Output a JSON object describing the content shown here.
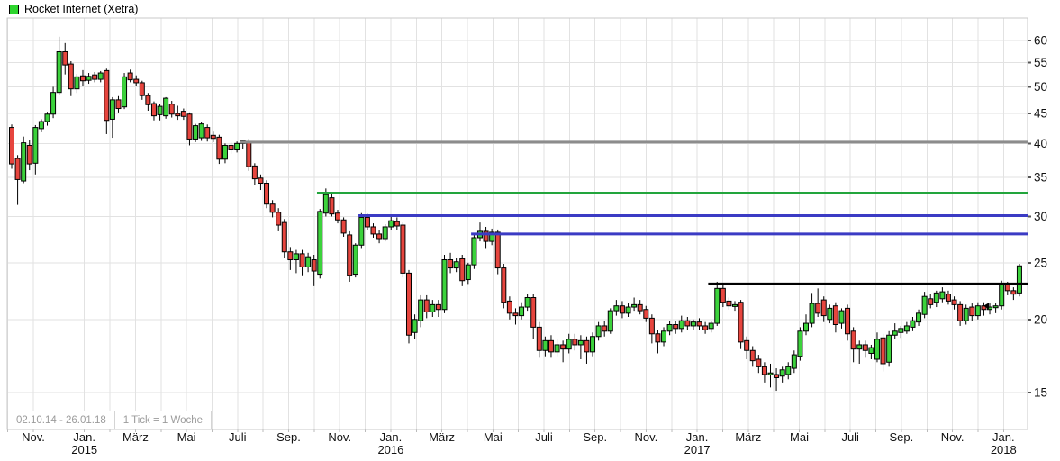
{
  "header": {
    "legend_label": "Rocket Internet (Xetra)",
    "legend_color": "#2ED52E"
  },
  "footer": {
    "date_range": "02.10.14 - 26.01.18",
    "tick_info": "1 Tick = 1 Woche"
  },
  "colors": {
    "background": "#FFFFFF",
    "grid": "#E2E2E2",
    "plot_border": "#C9C9C9",
    "up": "#3CD23C",
    "down": "#E6453E",
    "candle_outline": "#000000",
    "axis_text": "#111111",
    "tick_mark": "#555555",
    "footer_text": "#9B9B9B"
  },
  "chart_data": {
    "type": "candlestick",
    "title": "Rocket Internet (Xetra)",
    "period": "02.10.14 - 26.01.18",
    "interval": "1 Tick = 1 Woche",
    "scale": "log",
    "ylim": [
      13,
      66
    ],
    "yticks": [
      15,
      20,
      25,
      30,
      35,
      40,
      45,
      50,
      55,
      60
    ],
    "x_labels": [
      {
        "label": "Nov."
      },
      {
        "label": "Jan.",
        "year": "2015"
      },
      {
        "label": "März"
      },
      {
        "label": "Mai"
      },
      {
        "label": "Juli"
      },
      {
        "label": "Sep."
      },
      {
        "label": "Nov."
      },
      {
        "label": "Jan.",
        "year": "2016"
      },
      {
        "label": "März"
      },
      {
        "label": "Mai"
      },
      {
        "label": "Juli"
      },
      {
        "label": "Sep."
      },
      {
        "label": "Nov."
      },
      {
        "label": "Jan.",
        "year": "2017"
      },
      {
        "label": "März"
      },
      {
        "label": "Mai"
      },
      {
        "label": "Juli"
      },
      {
        "label": "Sep."
      },
      {
        "label": "Nov."
      },
      {
        "label": "Jan.",
        "year": "2018"
      }
    ],
    "levels": [
      {
        "name": "resistance-gray",
        "price": 40.2,
        "color": "#8C8C8C",
        "from_week": 40
      },
      {
        "name": "resistance-green",
        "price": 32.9,
        "color": "#22A53C",
        "from_week": 53
      },
      {
        "name": "resistance-blue-upper",
        "price": 30.1,
        "color": "#3B3BC4",
        "from_week": 60
      },
      {
        "name": "resistance-blue-lower",
        "price": 28.0,
        "color": "#3B3BC4",
        "from_week": 79
      },
      {
        "name": "resistance-black",
        "price": 23.0,
        "color": "#000000",
        "from_week": 119
      }
    ],
    "marker": {
      "week": 166,
      "price": 21.1,
      "shape": "left-arrow",
      "color": "#000000"
    },
    "candles": [
      [
        42.6,
        43.1,
        36.2,
        36.9
      ],
      [
        37.7,
        38.2,
        31.4,
        34.7
      ],
      [
        34.5,
        41.1,
        34.2,
        40.1
      ],
      [
        39.7,
        40.6,
        36.0,
        36.9
      ],
      [
        37.0,
        43.0,
        35.4,
        42.6
      ],
      [
        42.4,
        44.0,
        41.8,
        43.6
      ],
      [
        43.6,
        45.3,
        42.9,
        44.9
      ],
      [
        44.9,
        50.0,
        44.2,
        48.9
      ],
      [
        48.9,
        60.9,
        48.5,
        57.4
      ],
      [
        57.4,
        59.4,
        52.5,
        54.5
      ],
      [
        54.7,
        55.3,
        48.2,
        49.6
      ],
      [
        49.6,
        52.6,
        48.8,
        52.0
      ],
      [
        52.2,
        53.4,
        50.1,
        51.2
      ],
      [
        51.3,
        52.8,
        50.6,
        52.1
      ],
      [
        52.4,
        53.0,
        50.9,
        51.5
      ],
      [
        51.5,
        53.2,
        50.9,
        52.8
      ],
      [
        53.3,
        53.7,
        41.5,
        43.8
      ],
      [
        44.0,
        48.0,
        40.9,
        47.5
      ],
      [
        47.5,
        48.2,
        45.2,
        45.9
      ],
      [
        46.2,
        52.8,
        45.8,
        52.0
      ],
      [
        52.8,
        53.5,
        50.9,
        51.4
      ],
      [
        51.5,
        52.3,
        50.2,
        50.8
      ],
      [
        50.8,
        51.2,
        47.5,
        48.3
      ],
      [
        48.3,
        48.8,
        45.5,
        46.6
      ],
      [
        46.8,
        47.2,
        43.8,
        44.6
      ],
      [
        44.8,
        46.8,
        43.8,
        46.3
      ],
      [
        44.6,
        48.0,
        44.1,
        47.8
      ],
      [
        46.7,
        47.3,
        44.3,
        44.9
      ],
      [
        45.0,
        46.4,
        43.9,
        44.6
      ],
      [
        45.4,
        45.9,
        43.9,
        44.5
      ],
      [
        44.9,
        45.2,
        39.7,
        40.7
      ],
      [
        40.7,
        43.2,
        40.2,
        42.9
      ],
      [
        40.9,
        43.6,
        40.4,
        43.2
      ],
      [
        42.6,
        43.1,
        40.3,
        40.9
      ],
      [
        41.3,
        41.9,
        40.2,
        40.8
      ],
      [
        41.0,
        41.4,
        36.9,
        37.6
      ],
      [
        37.6,
        40.0,
        37.0,
        39.7
      ],
      [
        39.7,
        40.2,
        38.4,
        39.0
      ],
      [
        39.0,
        40.3,
        38.6,
        40.0
      ],
      [
        40.0,
        40.6,
        39.2,
        40.4
      ],
      [
        40.3,
        40.7,
        35.9,
        36.5
      ],
      [
        36.6,
        37.0,
        34.0,
        34.8
      ],
      [
        34.9,
        35.4,
        33.3,
        34.2
      ],
      [
        34.2,
        34.6,
        31.0,
        31.5
      ],
      [
        31.5,
        32.0,
        29.9,
        30.5
      ],
      [
        30.5,
        31.0,
        28.3,
        29.0
      ],
      [
        29.3,
        29.7,
        25.5,
        26.1
      ],
      [
        26.1,
        26.6,
        24.3,
        25.3
      ],
      [
        25.3,
        26.3,
        24.0,
        25.9
      ],
      [
        25.9,
        26.3,
        23.8,
        24.6
      ],
      [
        24.6,
        26.0,
        24.1,
        25.6
      ],
      [
        25.3,
        25.8,
        22.8,
        24.2
      ],
      [
        23.9,
        30.9,
        23.5,
        30.6
      ],
      [
        30.4,
        33.5,
        30.0,
        32.7
      ],
      [
        32.3,
        33.0,
        30.0,
        30.3
      ],
      [
        30.4,
        30.8,
        29.2,
        29.6
      ],
      [
        29.6,
        29.9,
        27.7,
        28.1
      ],
      [
        27.9,
        28.3,
        23.2,
        23.8
      ],
      [
        23.9,
        27.0,
        23.6,
        26.8
      ],
      [
        26.8,
        30.4,
        26.5,
        29.9
      ],
      [
        29.9,
        30.3,
        28.4,
        28.8
      ],
      [
        28.8,
        29.2,
        27.6,
        28.0
      ],
      [
        28.0,
        28.4,
        27.0,
        27.5
      ],
      [
        27.5,
        29.1,
        27.2,
        28.8
      ],
      [
        28.8,
        30.0,
        28.4,
        29.5
      ],
      [
        29.4,
        29.9,
        28.4,
        28.9
      ],
      [
        29.0,
        29.3,
        23.6,
        24.0
      ],
      [
        24.0,
        24.3,
        18.2,
        18.8
      ],
      [
        19.0,
        20.4,
        18.5,
        20.0
      ],
      [
        19.9,
        22.0,
        19.4,
        21.6
      ],
      [
        21.6,
        22.0,
        20.1,
        20.6
      ],
      [
        20.6,
        21.6,
        20.2,
        21.2
      ],
      [
        21.2,
        21.6,
        20.2,
        20.8
      ],
      [
        20.8,
        25.8,
        20.5,
        25.3
      ],
      [
        25.3,
        26.0,
        24.0,
        24.5
      ],
      [
        24.5,
        25.5,
        24.1,
        25.1
      ],
      [
        25.4,
        25.8,
        22.8,
        23.3
      ],
      [
        23.4,
        25.0,
        23.0,
        24.8
      ],
      [
        24.8,
        28.1,
        24.4,
        27.6
      ],
      [
        27.6,
        29.3,
        27.2,
        28.3
      ],
      [
        28.3,
        28.8,
        26.5,
        27.2
      ],
      [
        27.2,
        28.6,
        26.8,
        28.2
      ],
      [
        28.2,
        28.5,
        23.9,
        24.5
      ],
      [
        24.5,
        24.9,
        20.9,
        21.4
      ],
      [
        21.5,
        21.9,
        20.0,
        20.5
      ],
      [
        20.5,
        20.9,
        19.6,
        20.3
      ],
      [
        20.3,
        21.4,
        20.0,
        21.0
      ],
      [
        21.0,
        22.1,
        20.7,
        21.8
      ],
      [
        21.8,
        22.1,
        18.5,
        19.4
      ],
      [
        19.4,
        19.8,
        17.2,
        17.7
      ],
      [
        17.7,
        18.7,
        17.3,
        18.4
      ],
      [
        18.4,
        18.8,
        17.2,
        17.6
      ],
      [
        17.6,
        18.5,
        17.3,
        18.1
      ],
      [
        18.1,
        18.4,
        16.9,
        17.8
      ],
      [
        17.8,
        18.9,
        17.5,
        18.5
      ],
      [
        18.5,
        18.9,
        17.7,
        18.1
      ],
      [
        18.1,
        18.8,
        17.1,
        18.4
      ],
      [
        18.4,
        18.7,
        16.8,
        17.6
      ],
      [
        17.6,
        19.0,
        17.3,
        18.7
      ],
      [
        18.7,
        19.8,
        18.4,
        19.5
      ],
      [
        19.5,
        19.9,
        18.7,
        19.1
      ],
      [
        19.1,
        20.9,
        18.9,
        20.7
      ],
      [
        20.7,
        21.6,
        20.3,
        21.1
      ],
      [
        21.1,
        21.5,
        20.1,
        20.5
      ],
      [
        20.5,
        21.3,
        20.2,
        21.0
      ],
      [
        21.0,
        21.8,
        20.7,
        21.2
      ],
      [
        21.2,
        21.6,
        20.4,
        20.7
      ],
      [
        20.8,
        21.1,
        19.8,
        20.1
      ],
      [
        20.1,
        20.4,
        18.2,
        18.9
      ],
      [
        18.9,
        19.2,
        17.5,
        18.3
      ],
      [
        18.3,
        19.4,
        18.0,
        19.1
      ],
      [
        19.1,
        19.9,
        18.8,
        19.6
      ],
      [
        19.6,
        19.9,
        18.9,
        19.3
      ],
      [
        19.3,
        20.3,
        19.0,
        19.9
      ],
      [
        19.9,
        20.2,
        19.2,
        19.5
      ],
      [
        19.5,
        20.0,
        19.2,
        19.8
      ],
      [
        19.8,
        20.1,
        19.2,
        19.5
      ],
      [
        19.5,
        19.8,
        18.9,
        19.2
      ],
      [
        19.3,
        19.9,
        19.0,
        19.7
      ],
      [
        19.7,
        23.2,
        19.5,
        22.6
      ],
      [
        22.6,
        22.9,
        21.0,
        21.4
      ],
      [
        21.5,
        21.8,
        20.8,
        21.1
      ],
      [
        21.1,
        21.5,
        20.7,
        21.2
      ],
      [
        21.4,
        21.6,
        17.8,
        18.3
      ],
      [
        18.4,
        18.7,
        17.1,
        17.7
      ],
      [
        17.7,
        18.0,
        16.6,
        17.0
      ],
      [
        17.1,
        17.4,
        16.2,
        16.6
      ],
      [
        16.6,
        16.9,
        15.6,
        16.1
      ],
      [
        16.2,
        16.8,
        15.3,
        16.2
      ],
      [
        16.1,
        16.5,
        15.1,
        15.9
      ],
      [
        16.0,
        16.6,
        15.6,
        16.4
      ],
      [
        16.1,
        16.9,
        15.8,
        16.6
      ],
      [
        16.5,
        17.7,
        16.2,
        17.4
      ],
      [
        17.3,
        19.4,
        17.0,
        19.1
      ],
      [
        19.1,
        20.4,
        18.8,
        19.7
      ],
      [
        19.7,
        22.2,
        19.4,
        21.3
      ],
      [
        21.3,
        22.6,
        20.2,
        20.5
      ],
      [
        21.6,
        21.9,
        19.8,
        20.3
      ],
      [
        20.0,
        21.2,
        19.7,
        20.9
      ],
      [
        21.1,
        21.4,
        19.0,
        19.6
      ],
      [
        19.7,
        20.9,
        19.3,
        20.7
      ],
      [
        20.9,
        21.2,
        18.4,
        18.9
      ],
      [
        19.1,
        19.4,
        16.9,
        17.8
      ],
      [
        17.8,
        18.4,
        16.8,
        18.1
      ],
      [
        18.1,
        18.4,
        17.2,
        17.7
      ],
      [
        17.5,
        18.1,
        17.1,
        17.9
      ],
      [
        17.1,
        19.0,
        16.9,
        18.5
      ],
      [
        18.6,
        18.9,
        16.3,
        16.8
      ],
      [
        16.9,
        19.1,
        16.6,
        18.8
      ],
      [
        18.8,
        19.7,
        18.5,
        19.1
      ],
      [
        19.0,
        19.5,
        18.6,
        19.3
      ],
      [
        19.1,
        19.8,
        18.9,
        19.5
      ],
      [
        19.4,
        20.2,
        19.1,
        19.9
      ],
      [
        19.8,
        20.8,
        19.5,
        20.5
      ],
      [
        20.4,
        22.3,
        20.1,
        21.9
      ],
      [
        21.7,
        22.1,
        20.9,
        21.2
      ],
      [
        21.4,
        22.4,
        21.0,
        22.2
      ],
      [
        21.7,
        22.7,
        21.4,
        22.3
      ],
      [
        22.1,
        22.4,
        21.2,
        21.5
      ],
      [
        21.6,
        21.9,
        20.8,
        21.2
      ],
      [
        21.2,
        21.5,
        19.5,
        19.9
      ],
      [
        19.9,
        21.2,
        19.6,
        20.9
      ],
      [
        21.0,
        21.3,
        19.9,
        20.3
      ],
      [
        20.3,
        21.4,
        20.0,
        21.1
      ],
      [
        21.1,
        21.4,
        20.3,
        20.8
      ],
      [
        20.8,
        21.3,
        20.4,
        21.0
      ],
      [
        21.0,
        21.3,
        20.5,
        21.1
      ],
      [
        21.1,
        23.3,
        20.8,
        23.0
      ],
      [
        23.0,
        23.2,
        22.0,
        22.4
      ],
      [
        22.4,
        22.7,
        21.6,
        22.1
      ],
      [
        22.2,
        24.9,
        21.9,
        24.7
      ]
    ]
  }
}
